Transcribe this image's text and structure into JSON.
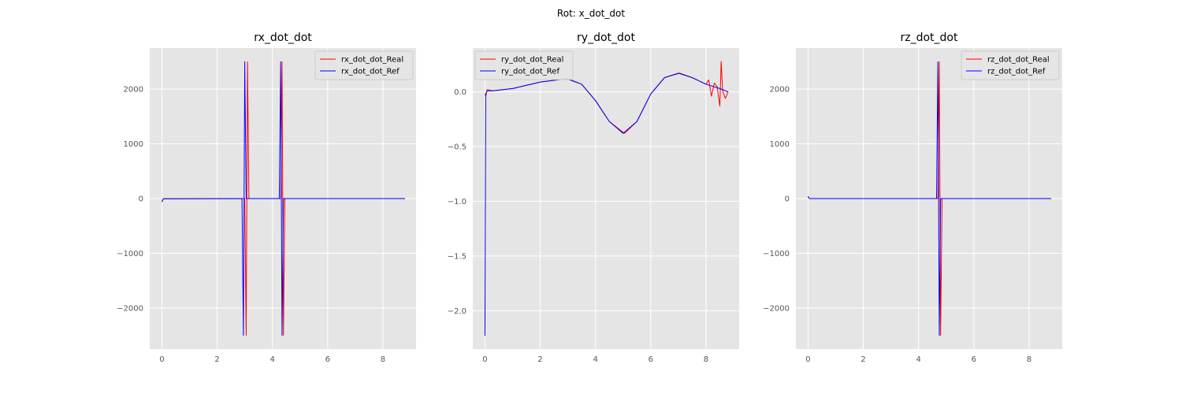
{
  "figure": {
    "suptitle": "Rot: x_dot_dot"
  },
  "colors": {
    "real": "#ff0000",
    "ref": "#0000ff",
    "panel_bg": "#e5e5e5",
    "grid": "#ffffff",
    "tick_text": "#555555"
  },
  "chart_data": [
    {
      "type": "line",
      "title": "rx_dot_dot",
      "xlabel": "",
      "ylabel": "",
      "xlim": [
        -0.44,
        9.2
      ],
      "ylim": [
        -2750,
        2750
      ],
      "xticks": [
        0,
        2,
        4,
        6,
        8
      ],
      "yticks": [
        -2000,
        -1000,
        0,
        1000,
        2000
      ],
      "xtick_labels": [
        "0",
        "2",
        "4",
        "6",
        "8"
      ],
      "ytick_labels": [
        "−2000",
        "−1000",
        "0",
        "1000",
        "2000"
      ],
      "grid": true,
      "legend_position": "top-right",
      "series": [
        {
          "name": "rx_dot_dot_Real",
          "color": "#ff0000",
          "x": [
            0,
            0.05,
            2.9,
            3.0,
            3.05,
            3.1,
            3.15,
            4.3,
            4.35,
            4.4,
            4.45,
            8.8
          ],
          "y": [
            -60,
            -5,
            0,
            0,
            -2500,
            2500,
            0,
            0,
            2500,
            -2500,
            0,
            0
          ]
        },
        {
          "name": "rx_dot_dot_Ref",
          "color": "#0000ff",
          "x": [
            0,
            0.05,
            2.9,
            2.95,
            3.0,
            3.05,
            4.25,
            4.3,
            4.35,
            4.4,
            8.8
          ],
          "y": [
            -60,
            -5,
            0,
            -2500,
            2500,
            0,
            0,
            2500,
            -2500,
            0,
            0
          ]
        }
      ]
    },
    {
      "type": "line",
      "title": "ry_dot_dot",
      "xlabel": "",
      "ylabel": "",
      "xlim": [
        -0.44,
        9.2
      ],
      "ylim": [
        -2.35,
        0.4
      ],
      "xticks": [
        0,
        2,
        4,
        6,
        8
      ],
      "yticks": [
        -2.0,
        -1.5,
        -1.0,
        -0.5,
        0.0
      ],
      "xtick_labels": [
        "0",
        "2",
        "4",
        "6",
        "8"
      ],
      "ytick_labels": [
        "−2.0",
        "−1.5",
        "−1.0",
        "−0.5",
        "0.0"
      ],
      "grid": true,
      "legend_position": "top-left",
      "series": [
        {
          "name": "ry_dot_dot_Real",
          "color": "#ff0000",
          "x": [
            0,
            0.03,
            0.08,
            0.3,
            1,
            2,
            3,
            3.5,
            4,
            4.5,
            5.05,
            5.5,
            6,
            6.5,
            7.05,
            7.5,
            8,
            8.1,
            8.2,
            8.3,
            8.4,
            8.5,
            8.55,
            8.6,
            8.7,
            8.8
          ],
          "y": [
            -0.02,
            -0.04,
            0.02,
            0.01,
            0.03,
            0.09,
            0.12,
            0.07,
            -0.08,
            -0.27,
            -0.38,
            -0.27,
            -0.02,
            0.13,
            0.17,
            0.13,
            0.07,
            0.11,
            -0.04,
            0.08,
            0.05,
            -0.13,
            0.28,
            0.01,
            -0.06,
            0.0
          ]
        },
        {
          "name": "ry_dot_dot_Ref",
          "color": "#0000ff",
          "x": [
            0,
            0.03,
            0.08,
            0.3,
            1,
            2,
            2.95,
            3.5,
            4,
            4.5,
            5.0,
            5.5,
            6,
            6.5,
            7.0,
            7.5,
            8,
            8.5,
            8.8
          ],
          "y": [
            -2.23,
            -0.02,
            0.01,
            0.01,
            0.03,
            0.09,
            0.12,
            0.07,
            -0.08,
            -0.27,
            -0.38,
            -0.27,
            -0.02,
            0.13,
            0.17,
            0.13,
            0.07,
            0.03,
            0.0
          ]
        }
      ]
    },
    {
      "type": "line",
      "title": "rz_dot_dot",
      "xlabel": "",
      "ylabel": "",
      "xlim": [
        -0.44,
        9.2
      ],
      "ylim": [
        -2750,
        2750
      ],
      "xticks": [
        0,
        2,
        4,
        6,
        8
      ],
      "yticks": [
        -2000,
        -1000,
        0,
        1000,
        2000
      ],
      "xtick_labels": [
        "0",
        "2",
        "4",
        "6",
        "8"
      ],
      "ytick_labels": [
        "−2000",
        "−1000",
        "0",
        "1000",
        "2000"
      ],
      "grid": true,
      "legend_position": "top-right",
      "series": [
        {
          "name": "rz_dot_dot_Real",
          "color": "#ff0000",
          "x": [
            0,
            0.05,
            4.7,
            4.75,
            4.8,
            4.85,
            8.8
          ],
          "y": [
            40,
            0,
            0,
            2500,
            -2500,
            0,
            0
          ]
        },
        {
          "name": "rz_dot_dot_Ref",
          "color": "#0000ff",
          "x": [
            0,
            0.05,
            4.65,
            4.7,
            4.75,
            4.8,
            8.8
          ],
          "y": [
            40,
            0,
            0,
            2500,
            -2500,
            0,
            0
          ]
        }
      ]
    }
  ]
}
